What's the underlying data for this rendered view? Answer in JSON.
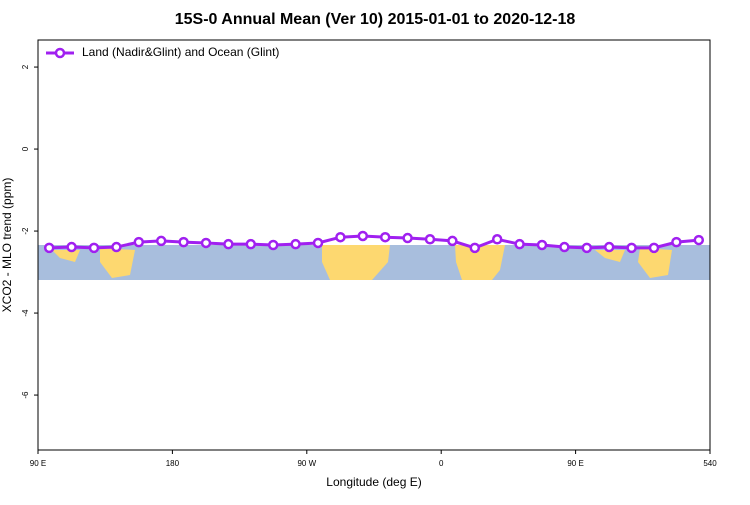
{
  "chart_data": {
    "type": "line",
    "title": "15S-0 Annual Mean (Ver 10)   2015-01-01 to 2020-12-18",
    "x_label": "Longitude (deg E)",
    "y_label": "XCO2 - MLO trend (ppm)",
    "x": [
      97.5,
      112.5,
      127.5,
      142.5,
      157.5,
      172.5,
      187.5,
      202.5,
      217.5,
      232.5,
      247.5,
      262.5,
      277.5,
      292.5,
      307.5,
      322.5,
      337.5,
      352.5,
      367.5,
      382.5,
      397.5,
      412.5,
      427.5,
      442.5,
      457.5,
      472.5,
      487.5,
      502.5,
      517.5,
      532.5
    ],
    "series": [
      {
        "name": "Land (Nadir&Glint) and Ocean (Glint)",
        "color": "#a020f0",
        "values": [
          -2.41,
          -2.39,
          -2.41,
          -2.39,
          -2.27,
          -2.24,
          -2.27,
          -2.29,
          -2.32,
          -2.32,
          -2.34,
          -2.32,
          -2.29,
          -2.15,
          -2.12,
          -2.15,
          -2.17,
          -2.2,
          -2.24,
          -2.41,
          -2.2,
          -2.32,
          -2.34,
          -2.39,
          -2.41,
          -2.39,
          -2.41,
          -2.41,
          -2.27,
          -2.22
        ]
      }
    ],
    "xlim": [
      90,
      540
    ],
    "xticks": [
      {
        "value": 90,
        "label": "90 E"
      },
      180,
      {
        "value": 270,
        "label": "90 W"
      },
      {
        "value": 360,
        "label": "0"
      },
      {
        "value": 450,
        "label": "90 E"
      },
      540
    ],
    "ylim": [
      -7.34,
      2.66
    ],
    "yticks": [
      2,
      0,
      -2,
      -4,
      -6
    ],
    "legend": "top-left"
  }
}
